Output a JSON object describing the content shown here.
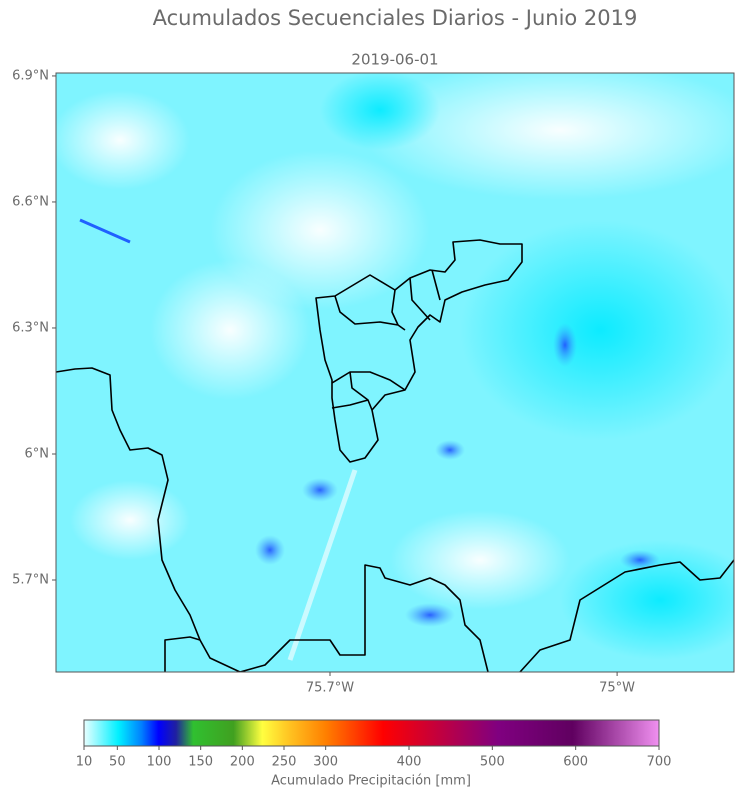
{
  "title": "Acumulados Secuenciales Diarios - Junio 2019",
  "map": {
    "subtitle": "2019-06-01",
    "lat_lim": [
      5.481,
      6.907
    ],
    "lon_lim": [
      -76.368,
      -74.715
    ],
    "lat_ticks": [
      {
        "value": 6.9,
        "label": "6.9°N"
      },
      {
        "value": 6.6,
        "label": "6.6°N"
      },
      {
        "value": 6.3,
        "label": "6.3°N"
      },
      {
        "value": 6,
        "label": "6°N"
      },
      {
        "value": 5.7,
        "label": "5.7°N"
      }
    ],
    "lon_ticks": [
      {
        "value": -75.7,
        "label": "75.7°W"
      },
      {
        "value": -75,
        "label": "75°W"
      }
    ]
  },
  "colorbar": {
    "lim": [
      10,
      700
    ],
    "ticks": [
      10,
      50,
      100,
      150,
      200,
      250,
      300,
      400,
      500,
      600,
      700
    ],
    "label": "Acumulado Precipitación [mm]"
  }
}
